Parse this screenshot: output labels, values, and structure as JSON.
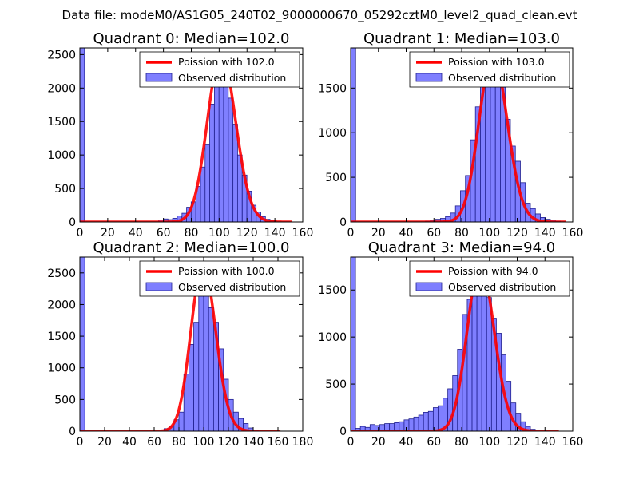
{
  "figure": {
    "suptitle": "Data file: modeM0/AS1G05_240T02_9000000670_05292cztM0_level2_quad_clean.evt",
    "colors": {
      "hist_fill": "#7f7fff",
      "hist_edge": "#20208f",
      "curve": "#ff0000",
      "curve_overlap": "#ff9999"
    }
  },
  "chart_data": [
    {
      "type": "bar",
      "title": "Quadrant 0: Median=102.0",
      "xlim": [
        0,
        160
      ],
      "xticks": [
        0,
        20,
        40,
        60,
        80,
        100,
        120,
        140,
        160
      ],
      "ylim": [
        0,
        2600
      ],
      "yticks": [
        0,
        500,
        1000,
        1500,
        2000,
        2500
      ],
      "bin_width": 3.33,
      "bins": [
        {
          "x": 0,
          "v": 2600
        },
        {
          "x": 56.6,
          "v": 30
        },
        {
          "x": 59.9,
          "v": 45
        },
        {
          "x": 63.3,
          "v": 35
        },
        {
          "x": 66.6,
          "v": 55
        },
        {
          "x": 69.9,
          "v": 90
        },
        {
          "x": 73.3,
          "v": 130
        },
        {
          "x": 76.6,
          "v": 220
        },
        {
          "x": 79.9,
          "v": 300
        },
        {
          "x": 83.3,
          "v": 530
        },
        {
          "x": 86.6,
          "v": 820
        },
        {
          "x": 89.9,
          "v": 1150
        },
        {
          "x": 93.2,
          "v": 1760
        },
        {
          "x": 96.6,
          "v": 2150
        },
        {
          "x": 99.9,
          "v": 2350
        },
        {
          "x": 103.2,
          "v": 2160
        },
        {
          "x": 106.6,
          "v": 1850
        },
        {
          "x": 109.9,
          "v": 1460
        },
        {
          "x": 113.2,
          "v": 1000
        },
        {
          "x": 116.6,
          "v": 700
        },
        {
          "x": 119.9,
          "v": 460
        },
        {
          "x": 123.2,
          "v": 250
        },
        {
          "x": 126.6,
          "v": 150
        },
        {
          "x": 129.9,
          "v": 80
        },
        {
          "x": 133.2,
          "v": 40
        },
        {
          "x": 136.5,
          "v": 20
        }
      ],
      "poisson_lambda": 102,
      "curve_peak": 2500,
      "curve_range": [
        0,
        152
      ],
      "legend": [
        "Poission with 102.0",
        "Observed distribution"
      ]
    },
    {
      "type": "bar",
      "title": "Quadrant 1: Median=103.0",
      "xlim": [
        0,
        160
      ],
      "xticks": [
        0,
        20,
        40,
        60,
        80,
        100,
        120,
        140,
        160
      ],
      "ylim": [
        0,
        1950
      ],
      "yticks": [
        0,
        500,
        1000,
        1500
      ],
      "bin_width": 3.6,
      "bins": [
        {
          "x": 0,
          "v": 1950
        },
        {
          "x": 53.9,
          "v": 10
        },
        {
          "x": 57.5,
          "v": 20
        },
        {
          "x": 61.1,
          "v": 30
        },
        {
          "x": 64.7,
          "v": 40
        },
        {
          "x": 68.3,
          "v": 60
        },
        {
          "x": 71.9,
          "v": 100
        },
        {
          "x": 75.5,
          "v": 180
        },
        {
          "x": 79.1,
          "v": 350
        },
        {
          "x": 82.7,
          "v": 520
        },
        {
          "x": 86.3,
          "v": 920
        },
        {
          "x": 89.9,
          "v": 1290
        },
        {
          "x": 93.5,
          "v": 1580
        },
        {
          "x": 97.1,
          "v": 1640
        },
        {
          "x": 100.7,
          "v": 1810
        },
        {
          "x": 104.3,
          "v": 1630
        },
        {
          "x": 107.9,
          "v": 1510
        },
        {
          "x": 111.5,
          "v": 1150
        },
        {
          "x": 115.1,
          "v": 850
        },
        {
          "x": 118.7,
          "v": 680
        },
        {
          "x": 122.3,
          "v": 440
        },
        {
          "x": 125.9,
          "v": 210
        },
        {
          "x": 129.5,
          "v": 150
        },
        {
          "x": 133.1,
          "v": 90
        },
        {
          "x": 136.7,
          "v": 50
        },
        {
          "x": 140.3,
          "v": 30
        },
        {
          "x": 143.9,
          "v": 20
        },
        {
          "x": 147.5,
          "v": 10
        }
      ],
      "poisson_lambda": 103,
      "curve_peak": 1870,
      "curve_range": [
        0,
        155
      ],
      "legend": [
        "Poission with 103.0",
        "Observed distribution"
      ]
    },
    {
      "type": "bar",
      "title": "Quadrant 2: Median=100.0",
      "xlim": [
        0,
        180
      ],
      "xticks": [
        0,
        20,
        40,
        60,
        80,
        100,
        120,
        140,
        160,
        180
      ],
      "ylim": [
        0,
        2750
      ],
      "yticks": [
        0,
        500,
        1000,
        1500,
        2000,
        2500
      ],
      "bin_width": 4.0,
      "bins": [
        {
          "x": 0,
          "v": 2750
        },
        {
          "x": 68.0,
          "v": 40
        },
        {
          "x": 72.0,
          "v": 80
        },
        {
          "x": 76.0,
          "v": 180
        },
        {
          "x": 80.0,
          "v": 300
        },
        {
          "x": 84.0,
          "v": 900
        },
        {
          "x": 88.0,
          "v": 1370
        },
        {
          "x": 92.0,
          "v": 1720
        },
        {
          "x": 96.0,
          "v": 2210
        },
        {
          "x": 100.0,
          "v": 2610
        },
        {
          "x": 104.0,
          "v": 1950
        },
        {
          "x": 108.0,
          "v": 1720
        },
        {
          "x": 112.0,
          "v": 1300
        },
        {
          "x": 116.0,
          "v": 820
        },
        {
          "x": 120.0,
          "v": 500
        },
        {
          "x": 124.0,
          "v": 300
        },
        {
          "x": 128.0,
          "v": 200
        },
        {
          "x": 132.0,
          "v": 120
        },
        {
          "x": 136.0,
          "v": 50
        },
        {
          "x": 140.0,
          "v": 20
        }
      ],
      "poisson_lambda": 100,
      "curve_peak": 2620,
      "curve_range": [
        0,
        162
      ],
      "legend": [
        "Poission with 100.0",
        "Observed distribution"
      ]
    },
    {
      "type": "bar",
      "title": "Quadrant 3: Median=94.0",
      "xlim": [
        0,
        160
      ],
      "xticks": [
        0,
        20,
        40,
        60,
        80,
        100,
        120,
        140,
        160
      ],
      "ylim": [
        0,
        1850
      ],
      "yticks": [
        0,
        500,
        1000,
        1500
      ],
      "bin_width": 3.5,
      "bins": [
        {
          "x": 0,
          "v": 1850
        },
        {
          "x": 3.5,
          "v": 30
        },
        {
          "x": 7.0,
          "v": 50
        },
        {
          "x": 10.5,
          "v": 40
        },
        {
          "x": 14.0,
          "v": 70
        },
        {
          "x": 17.5,
          "v": 60
        },
        {
          "x": 21.0,
          "v": 70
        },
        {
          "x": 24.5,
          "v": 80
        },
        {
          "x": 28.0,
          "v": 80
        },
        {
          "x": 31.5,
          "v": 90
        },
        {
          "x": 35.0,
          "v": 100
        },
        {
          "x": 38.5,
          "v": 120
        },
        {
          "x": 42.0,
          "v": 130
        },
        {
          "x": 45.5,
          "v": 150
        },
        {
          "x": 49.0,
          "v": 170
        },
        {
          "x": 52.5,
          "v": 200
        },
        {
          "x": 56.0,
          "v": 210
        },
        {
          "x": 59.5,
          "v": 250
        },
        {
          "x": 63.0,
          "v": 270
        },
        {
          "x": 66.5,
          "v": 350
        },
        {
          "x": 70.0,
          "v": 450
        },
        {
          "x": 73.5,
          "v": 590
        },
        {
          "x": 77.0,
          "v": 870
        },
        {
          "x": 80.5,
          "v": 1240
        },
        {
          "x": 84.0,
          "v": 1400
        },
        {
          "x": 87.5,
          "v": 1600
        },
        {
          "x": 91.0,
          "v": 1760
        },
        {
          "x": 94.5,
          "v": 1560
        },
        {
          "x": 98.0,
          "v": 1420
        },
        {
          "x": 101.5,
          "v": 1200
        },
        {
          "x": 105.0,
          "v": 1040
        },
        {
          "x": 108.5,
          "v": 810
        },
        {
          "x": 112.0,
          "v": 530
        },
        {
          "x": 115.5,
          "v": 300
        },
        {
          "x": 119.0,
          "v": 190
        },
        {
          "x": 122.5,
          "v": 100
        },
        {
          "x": 126.0,
          "v": 50
        },
        {
          "x": 129.5,
          "v": 20
        }
      ],
      "poisson_lambda": 94,
      "curve_peak": 1770,
      "curve_range": [
        0,
        150
      ],
      "legend": [
        "Poission with 94.0",
        "Observed distribution"
      ]
    }
  ]
}
